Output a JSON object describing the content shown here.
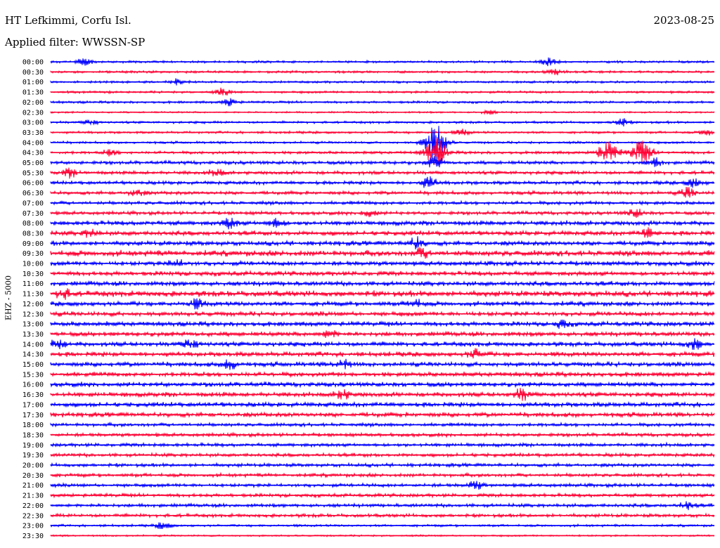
{
  "header": {
    "station": "HT Lefkimmi, Corfu Isl.",
    "date": "2023-08-25",
    "filter_label": "Applied filter: WWSSN-SP",
    "channel_label": "EHZ - 5000"
  },
  "chart_data": {
    "type": "line",
    "title": "HT Lefkimmi, Corfu Isl.",
    "subtitle": "Applied filter: WWSSN-SP",
    "ylabel": "EHZ - 5000",
    "xlabel": "",
    "grid": false,
    "colors": {
      "even_rows": "#0000ff",
      "odd_rows": "#ff0033"
    },
    "rows": [
      "00:00",
      "00:30",
      "01:00",
      "01:30",
      "02:00",
      "02:30",
      "03:00",
      "03:30",
      "04:00",
      "04:30",
      "05:00",
      "05:30",
      "06:00",
      "06:30",
      "07:00",
      "07:30",
      "08:00",
      "08:30",
      "09:00",
      "09:30",
      "10:00",
      "10:30",
      "11:00",
      "11:30",
      "12:00",
      "12:30",
      "13:00",
      "13:30",
      "14:00",
      "14:30",
      "15:00",
      "15:30",
      "16:00",
      "16:30",
      "17:00",
      "17:30",
      "18:00",
      "18:30",
      "19:00",
      "19:30",
      "20:00",
      "20:30",
      "21:00",
      "21:30",
      "22:00",
      "22:30",
      "23:00",
      "23:30"
    ],
    "noise_level": [
      2,
      2,
      2,
      2,
      2,
      1.5,
      2,
      2,
      2,
      2.5,
      3,
      3,
      3,
      3,
      3,
      3,
      4,
      4,
      4,
      5,
      4,
      4,
      4,
      5,
      4,
      4,
      4,
      4,
      4,
      4,
      4,
      4,
      4,
      4,
      4,
      4,
      3,
      3,
      3,
      3,
      3,
      3,
      3,
      3,
      3,
      3,
      2,
      1.5
    ],
    "events": [
      {
        "row": 0,
        "pos": 0.05,
        "amp": 5
      },
      {
        "row": 0,
        "pos": 0.75,
        "amp": 6
      },
      {
        "row": 1,
        "pos": 0.76,
        "amp": 4
      },
      {
        "row": 2,
        "pos": 0.19,
        "amp": 4
      },
      {
        "row": 3,
        "pos": 0.26,
        "amp": 5
      },
      {
        "row": 4,
        "pos": 0.27,
        "amp": 5
      },
      {
        "row": 5,
        "pos": 0.66,
        "amp": 3
      },
      {
        "row": 6,
        "pos": 0.06,
        "amp": 4
      },
      {
        "row": 6,
        "pos": 0.86,
        "amp": 6
      },
      {
        "row": 7,
        "pos": 0.62,
        "amp": 4
      },
      {
        "row": 7,
        "pos": 0.99,
        "amp": 5
      },
      {
        "row": 8,
        "pos": 0.58,
        "amp": 30
      },
      {
        "row": 9,
        "pos": 0.58,
        "amp": 20
      },
      {
        "row": 9,
        "pos": 0.84,
        "amp": 14
      },
      {
        "row": 9,
        "pos": 0.89,
        "amp": 16
      },
      {
        "row": 9,
        "pos": 0.09,
        "amp": 4
      },
      {
        "row": 10,
        "pos": 0.58,
        "amp": 10
      },
      {
        "row": 10,
        "pos": 0.91,
        "amp": 6
      },
      {
        "row": 11,
        "pos": 0.03,
        "amp": 6
      },
      {
        "row": 11,
        "pos": 0.25,
        "amp": 5
      },
      {
        "row": 12,
        "pos": 0.57,
        "amp": 8
      },
      {
        "row": 12,
        "pos": 0.97,
        "amp": 6
      },
      {
        "row": 13,
        "pos": 0.13,
        "amp": 5
      },
      {
        "row": 13,
        "pos": 0.96,
        "amp": 7
      },
      {
        "row": 15,
        "pos": 0.48,
        "amp": 5
      },
      {
        "row": 15,
        "pos": 0.88,
        "amp": 6
      },
      {
        "row": 16,
        "pos": 0.27,
        "amp": 7
      },
      {
        "row": 16,
        "pos": 0.34,
        "amp": 6
      },
      {
        "row": 17,
        "pos": 0.06,
        "amp": 5
      },
      {
        "row": 17,
        "pos": 0.9,
        "amp": 6
      },
      {
        "row": 18,
        "pos": 0.55,
        "amp": 8
      },
      {
        "row": 19,
        "pos": 0.56,
        "amp": 6
      },
      {
        "row": 20,
        "pos": 0.19,
        "amp": 5
      },
      {
        "row": 23,
        "pos": 0.02,
        "amp": 6
      },
      {
        "row": 24,
        "pos": 0.22,
        "amp": 6
      },
      {
        "row": 24,
        "pos": 0.55,
        "amp": 5
      },
      {
        "row": 26,
        "pos": 0.77,
        "amp": 5
      },
      {
        "row": 27,
        "pos": 0.42,
        "amp": 5
      },
      {
        "row": 28,
        "pos": 0.01,
        "amp": 7
      },
      {
        "row": 28,
        "pos": 0.21,
        "amp": 7
      },
      {
        "row": 28,
        "pos": 0.97,
        "amp": 7
      },
      {
        "row": 29,
        "pos": 0.64,
        "amp": 6
      },
      {
        "row": 30,
        "pos": 0.27,
        "amp": 7
      },
      {
        "row": 30,
        "pos": 0.44,
        "amp": 7
      },
      {
        "row": 33,
        "pos": 0.44,
        "amp": 6
      },
      {
        "row": 33,
        "pos": 0.71,
        "amp": 8
      },
      {
        "row": 42,
        "pos": 0.64,
        "amp": 6
      },
      {
        "row": 44,
        "pos": 0.96,
        "amp": 5
      },
      {
        "row": 46,
        "pos": 0.17,
        "amp": 5
      }
    ]
  }
}
